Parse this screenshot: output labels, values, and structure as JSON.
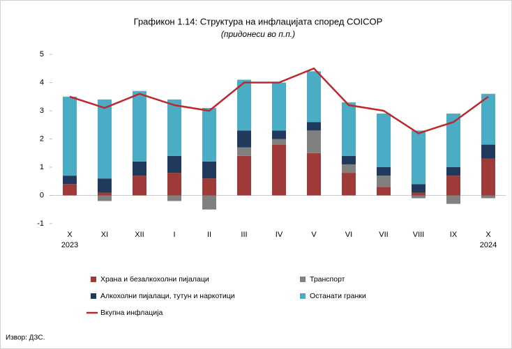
{
  "chart_data": {
    "type": "stacked_bar_line",
    "title": "Графикон 1.14: Структура на инфлацијата според COICOP",
    "subtitle": "(придонеси во п.п.)",
    "categories": [
      "X",
      "XI",
      "XII",
      "I",
      "II",
      "III",
      "IV",
      "V",
      "VI",
      "VII",
      "VIII",
      "IX",
      "X"
    ],
    "x_sublabels": [
      "2023",
      null,
      null,
      null,
      null,
      null,
      null,
      null,
      null,
      null,
      null,
      null,
      "2024"
    ],
    "series": [
      {
        "name": "Храна и безалкохолни пијалаци",
        "color": "#9e3a38",
        "values": [
          0.4,
          0.1,
          0.7,
          0.8,
          0.6,
          1.4,
          1.8,
          1.5,
          0.8,
          0.3,
          0.1,
          0.7,
          1.3
        ]
      },
      {
        "name": "Транспорт",
        "color": "#808080",
        "values": [
          0,
          -0.2,
          0,
          -0.2,
          -0.5,
          0.3,
          0.2,
          0.8,
          0.3,
          0.4,
          -0.1,
          -0.3,
          -0.1
        ]
      },
      {
        "name": "Алкохолни пијалаци, тутун и наркотици",
        "color": "#1f3a5c",
        "values": [
          0.3,
          0.5,
          0.5,
          0.6,
          0.6,
          0.6,
          0.3,
          0.3,
          0.3,
          0.3,
          0.3,
          0.3,
          0.5
        ]
      },
      {
        "name": "Останати гранки",
        "color": "#4bacc6",
        "values": [
          2.8,
          2.8,
          2.5,
          2.0,
          1.9,
          1.8,
          1.7,
          1.8,
          1.9,
          1.9,
          1.9,
          1.9,
          1.8
        ]
      },
      {
        "name": "Вкупна инфлација",
        "color": "#c0272d",
        "type": "line",
        "values": [
          3.5,
          3.1,
          3.6,
          3.2,
          3.0,
          4.0,
          4.0,
          4.5,
          3.2,
          3.0,
          2.2,
          2.6,
          3.5
        ]
      }
    ],
    "ylim": [
      -1,
      5
    ],
    "yticks": [
      -1,
      0,
      1,
      2,
      3,
      4,
      5
    ],
    "source": "Извор: ДЗС."
  }
}
